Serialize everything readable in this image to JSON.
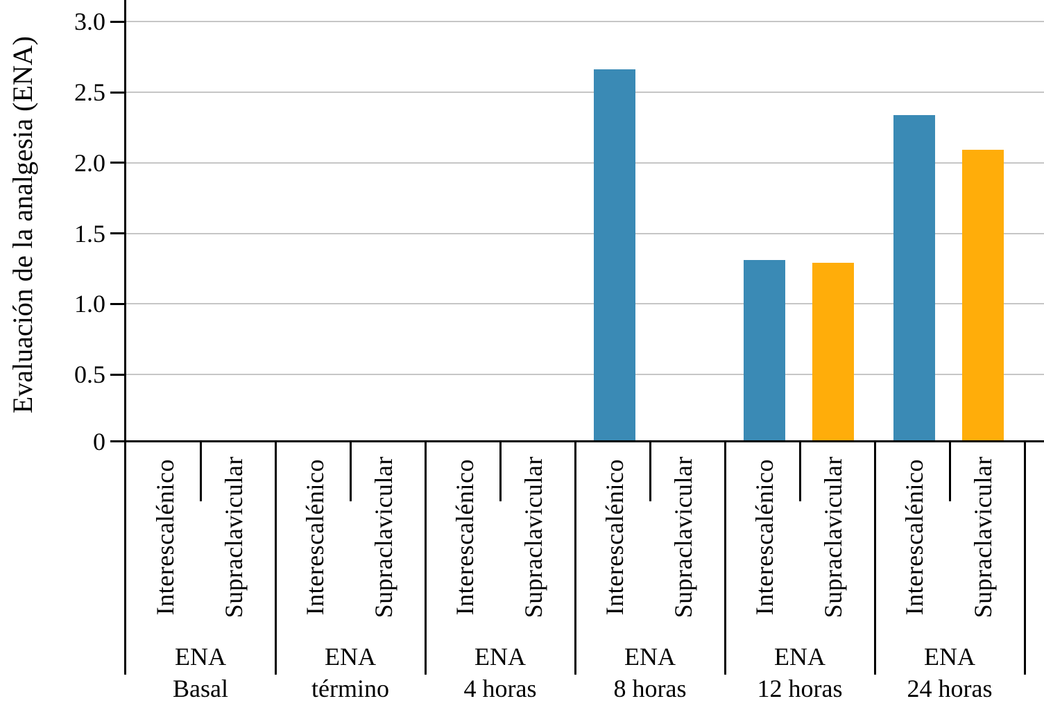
{
  "chart_data": {
    "type": "bar",
    "title": "",
    "xlabel": "",
    "ylabel": "Evaluación de la analgesia (ENA)",
    "ylim": [
      0,
      3.0
    ],
    "y_ticks": [
      0,
      0.5,
      1.0,
      1.5,
      2.0,
      2.5,
      3.0
    ],
    "y_tick_labels": [
      "0",
      "0.5",
      "1.0",
      "1.5",
      "2.0",
      "2.5",
      "3.0"
    ],
    "grid": "horizontal-on",
    "legend_position": "none",
    "categories": [
      "ENA Basal",
      "ENA término",
      "ENA 4 horas",
      "ENA 8 horas",
      "ENA 12 horas",
      "ENA 24 horas"
    ],
    "group_label_line1": "ENA",
    "group_label_line2": [
      "Basal",
      "término",
      "4 horas",
      "8 horas",
      "12 horas",
      "24 horas"
    ],
    "bar_labels": [
      "Interescalénico",
      "Supraclavicular"
    ],
    "series": [
      {
        "name": "Interescalénico",
        "color": "#3a8ab5",
        "values": [
          0,
          0,
          0,
          2.66,
          1.31,
          2.34
        ]
      },
      {
        "name": "Supraclavicular",
        "color": "#ffad0a",
        "values": [
          0,
          0,
          0,
          0,
          1.29,
          2.09
        ]
      }
    ],
    "grid_color": "#c6c6c6",
    "axis_color": "#000000"
  }
}
